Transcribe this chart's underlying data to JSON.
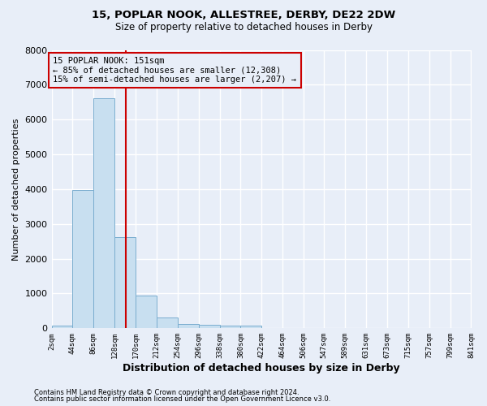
{
  "title1": "15, POPLAR NOOK, ALLESTREE, DERBY, DE22 2DW",
  "title2": "Size of property relative to detached houses in Derby",
  "xlabel": "Distribution of detached houses by size in Derby",
  "ylabel": "Number of detached properties",
  "footnote1": "Contains HM Land Registry data © Crown copyright and database right 2024.",
  "footnote2": "Contains public sector information licensed under the Open Government Licence v3.0.",
  "annotation_line1": "15 POPLAR NOOK: 151sqm",
  "annotation_line2": "← 85% of detached houses are smaller (12,308)",
  "annotation_line3": "15% of semi-detached houses are larger (2,207) →",
  "property_size": 151,
  "bar_color": "#c8dff0",
  "bar_edge_color": "#7aadcf",
  "vline_color": "#cc0000",
  "annotation_box_edge": "#cc0000",
  "background_color": "#e8eef8",
  "grid_color": "#ffffff",
  "categories": [
    "2sqm",
    "44sqm",
    "86sqm",
    "128sqm",
    "170sqm",
    "212sqm",
    "254sqm",
    "296sqm",
    "338sqm",
    "380sqm",
    "422sqm",
    "464sqm",
    "506sqm",
    "547sqm",
    "589sqm",
    "631sqm",
    "673sqm",
    "715sqm",
    "757sqm",
    "799sqm",
    "841sqm"
  ],
  "bin_edges": [
    2,
    44,
    86,
    128,
    170,
    212,
    254,
    296,
    338,
    380,
    422,
    464,
    506,
    547,
    589,
    631,
    673,
    715,
    757,
    799,
    841
  ],
  "values": [
    80,
    3980,
    6600,
    2620,
    950,
    300,
    120,
    110,
    85,
    70,
    0,
    0,
    0,
    0,
    0,
    0,
    0,
    0,
    0,
    0
  ],
  "ylim": [
    0,
    8000
  ],
  "yticks": [
    0,
    1000,
    2000,
    3000,
    4000,
    5000,
    6000,
    7000,
    8000
  ]
}
